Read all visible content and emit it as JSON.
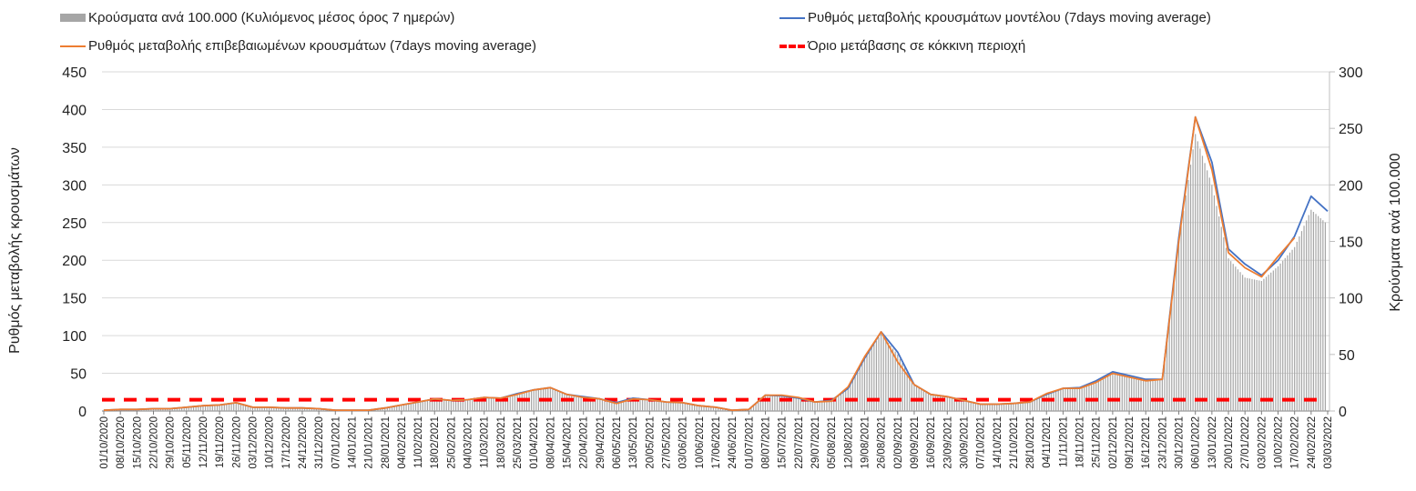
{
  "legend": {
    "bars": "Κρούσματα ανά 100.000 (Κυλιόμενος μέσος όρος 7 ημερών)",
    "orange": "Ρυθμός μεταβολής επιβεβαιωμένων κρουσμάτων (7days moving average)",
    "blue": "Ρυθμός μεταβολής κρουσμάτων μοντέλου (7days moving average)",
    "red": "Όριο μετάβασης σε κόκκινη περιοχή"
  },
  "chart_data": {
    "type": "bar+line",
    "ylabel": "Ρυθμός μεταβολής κρουσμάτων",
    "y2label": "Κρούσματα ανά 100.000",
    "ylim": [
      0,
      450
    ],
    "y2lim": [
      0,
      300
    ],
    "yticks": [
      "0",
      "50",
      "100",
      "150",
      "200",
      "250",
      "300",
      "350",
      "400",
      "450"
    ],
    "y2ticks": [
      "0",
      "50",
      "100",
      "150",
      "200",
      "250",
      "300"
    ],
    "grid": true,
    "legend_position": "top",
    "colors": {
      "bars": "#a6a6a6",
      "orange": "#ed7d31",
      "blue": "#4472c4",
      "red": "#ff0000",
      "grid": "#d9d9d9"
    },
    "categories": [
      "01/10/2020",
      "08/10/2020",
      "15/10/2020",
      "22/10/2020",
      "29/10/2020",
      "05/11/2020",
      "12/11/2020",
      "19/11/2020",
      "26/11/2020",
      "03/12/2020",
      "10/12/2020",
      "17/12/2020",
      "24/12/2020",
      "31/12/2020",
      "07/01/2021",
      "14/01/2021",
      "21/01/2021",
      "28/01/2021",
      "04/02/2021",
      "11/02/2021",
      "18/02/2021",
      "25/02/2021",
      "04/03/2021",
      "11/03/2021",
      "18/03/2021",
      "25/03/2021",
      "01/04/2021",
      "08/04/2021",
      "15/04/2021",
      "22/04/2021",
      "29/04/2021",
      "06/05/2021",
      "13/05/2021",
      "20/05/2021",
      "27/05/2021",
      "03/06/2021",
      "10/06/2021",
      "17/06/2021",
      "24/06/2021",
      "01/07/2021",
      "08/07/2021",
      "15/07/2021",
      "22/07/2021",
      "29/07/2021",
      "05/08/2021",
      "12/08/2021",
      "19/08/2021",
      "26/08/2021",
      "02/09/2021",
      "09/09/2021",
      "16/09/2021",
      "23/09/2021",
      "30/09/2021",
      "07/10/2021",
      "14/10/2021",
      "21/10/2021",
      "28/10/2021",
      "04/11/2021",
      "11/11/2021",
      "18/11/2021",
      "25/11/2021",
      "02/12/2021",
      "09/12/2021",
      "16/12/2021",
      "23/12/2021",
      "30/12/2021",
      "06/01/2022",
      "13/01/2022",
      "20/01/2022",
      "27/01/2022",
      "03/02/2022",
      "10/02/2022",
      "17/02/2022",
      "24/02/2022",
      "03/03/2022"
    ],
    "series": [
      {
        "name": "blue",
        "axis": "left",
        "values": [
          1,
          2,
          2,
          3,
          3,
          5,
          7,
          8,
          11,
          5,
          5,
          4,
          4,
          3,
          1,
          1,
          1,
          4,
          8,
          12,
          16,
          14,
          15,
          18,
          17,
          23,
          28,
          31,
          22,
          19,
          16,
          11,
          17,
          15,
          12,
          11,
          7,
          5,
          1,
          2,
          21,
          20,
          17,
          12,
          14,
          30,
          70,
          105,
          78,
          35,
          22,
          19,
          14,
          9,
          9,
          10,
          12,
          22,
          30,
          31,
          40,
          52,
          47,
          42,
          42,
          230,
          390,
          330,
          215,
          195,
          180,
          200,
          232,
          285,
          265
        ]
      },
      {
        "name": "orange",
        "axis": "left",
        "values": [
          1,
          2,
          2,
          3,
          3,
          5,
          7,
          8,
          11,
          5,
          5,
          4,
          4,
          3,
          1,
          1,
          1,
          4,
          8,
          12,
          16,
          14,
          15,
          18,
          17,
          22,
          28,
          31,
          22,
          18,
          16,
          10,
          16,
          15,
          12,
          11,
          7,
          5,
          1,
          2,
          21,
          21,
          18,
          12,
          13,
          32,
          72,
          105,
          65,
          35,
          22,
          19,
          14,
          9,
          9,
          10,
          12,
          23,
          30,
          30,
          38,
          50,
          45,
          40,
          42,
          225,
          390,
          320,
          210,
          190,
          178,
          205,
          230,
          null,
          null
        ]
      },
      {
        "name": "bars",
        "axis": "right",
        "values": [
          1,
          1,
          1,
          2,
          2,
          3,
          4,
          5,
          7,
          3,
          3,
          3,
          3,
          2,
          1,
          1,
          1,
          3,
          5,
          8,
          11,
          9,
          10,
          12,
          11,
          15,
          19,
          21,
          15,
          13,
          11,
          7,
          11,
          10,
          8,
          7,
          5,
          3,
          1,
          1,
          14,
          13,
          11,
          8,
          9,
          20,
          47,
          68,
          50,
          23,
          15,
          13,
          9,
          6,
          6,
          7,
          8,
          15,
          20,
          21,
          26,
          33,
          30,
          28,
          28,
          150,
          245,
          200,
          135,
          118,
          115,
          128,
          145,
          178,
          165
        ]
      },
      {
        "name": "red",
        "axis": "right",
        "constant": 10
      }
    ]
  }
}
